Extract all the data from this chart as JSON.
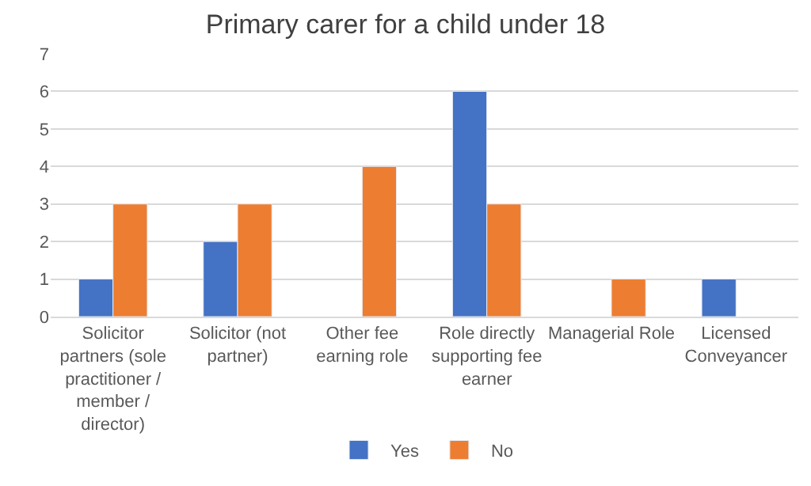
{
  "chart_data": {
    "type": "bar",
    "title": "Primary carer for a child under 18",
    "categories": [
      "Solicitor partners (sole practitioner / member / director)",
      "Solicitor (not partner)",
      "Other fee earning role",
      "Role directly supporting fee earner",
      "Managerial Role",
      "Licensed Conveyancer"
    ],
    "series": [
      {
        "name": "Yes",
        "color": "#4472c4",
        "values": [
          1,
          2,
          null,
          6,
          null,
          1
        ]
      },
      {
        "name": "No",
        "color": "#ed7d31",
        "values": [
          3,
          3,
          4,
          3,
          1,
          null
        ]
      }
    ],
    "ylim": [
      0,
      7
    ],
    "yticks": [
      0,
      1,
      2,
      3,
      4,
      5,
      6,
      7
    ],
    "grid": "y",
    "legend": "bottom"
  }
}
